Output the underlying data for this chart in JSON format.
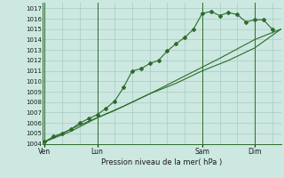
{
  "background_color": "#cce8e0",
  "grid_color": "#a8ccc4",
  "line_color": "#2d6b2d",
  "xlabel": "Pression niveau de la mer( hPa )",
  "ylim": [
    1004,
    1017.5
  ],
  "yticks": [
    1004,
    1005,
    1006,
    1007,
    1008,
    1009,
    1010,
    1011,
    1012,
    1013,
    1014,
    1015,
    1016,
    1017
  ],
  "xtick_labels": [
    "Ven",
    "Lun",
    "Sam",
    "Dim"
  ],
  "xtick_positions": [
    0,
    3,
    9,
    12
  ],
  "xlim": [
    -0.1,
    13.5
  ],
  "vlines": [
    0,
    3,
    9,
    12
  ],
  "series1_x": [
    0,
    0.5,
    1.0,
    1.5,
    2.0,
    2.5,
    3.0,
    3.5,
    4.0,
    4.5,
    5.0,
    5.5,
    6.0,
    6.5,
    7.0,
    7.5,
    8.0,
    8.5,
    9.0,
    9.5,
    10.0,
    10.5,
    11.0,
    11.5,
    12.0,
    12.5,
    13.0
  ],
  "series1_y": [
    1004.2,
    1004.7,
    1005.0,
    1005.4,
    1006.0,
    1006.4,
    1006.8,
    1007.4,
    1008.1,
    1009.4,
    1011.0,
    1011.2,
    1011.7,
    1012.0,
    1012.9,
    1013.6,
    1014.2,
    1015.0,
    1016.5,
    1016.7,
    1016.3,
    1016.6,
    1016.4,
    1015.7,
    1015.9,
    1015.9,
    1015.0
  ],
  "series2_x": [
    0,
    1.5,
    3.0,
    4.5,
    6.0,
    7.5,
    9.0,
    10.5,
    12.0,
    13.5
  ],
  "series2_y": [
    1004.2,
    1005.2,
    1006.5,
    1007.6,
    1008.8,
    1009.8,
    1011.0,
    1012.0,
    1013.2,
    1015.0
  ],
  "series3_x": [
    0,
    2,
    4,
    6,
    8,
    10,
    12,
    13.5
  ],
  "series3_y": [
    1004.2,
    1005.8,
    1007.2,
    1008.8,
    1010.5,
    1012.2,
    1014.0,
    1015.0
  ]
}
